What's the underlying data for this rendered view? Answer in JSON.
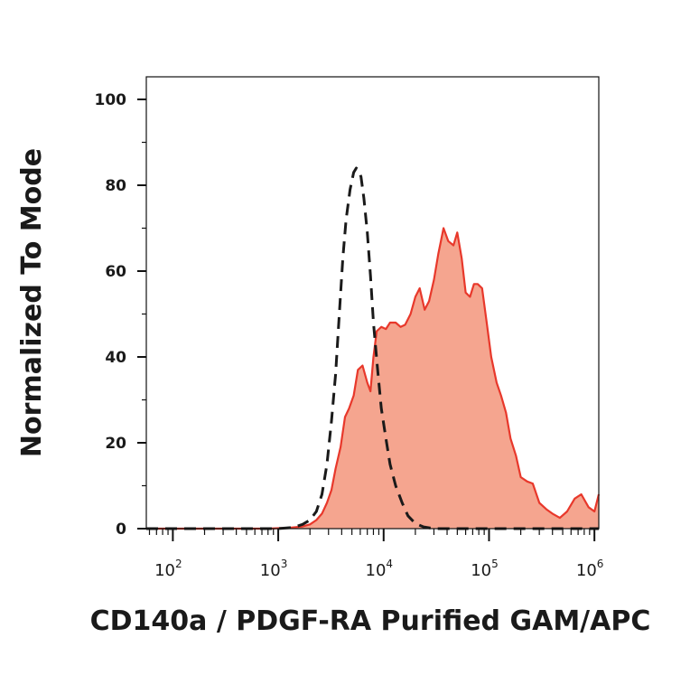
{
  "chart_data": {
    "type": "area",
    "title": "",
    "xlabel": "CD140a / PDGF-RA Purified GAM/APC",
    "ylabel": "Normalized To Mode",
    "xscale": "log",
    "xlim": [
      56,
      1100000
    ],
    "ylim": [
      0,
      100
    ],
    "yticks": [
      "0",
      "20",
      "40",
      "60",
      "80",
      "100"
    ],
    "xticks": [
      {
        "base": "10",
        "exp": "2"
      },
      {
        "base": "10",
        "exp": "3"
      },
      {
        "base": "10",
        "exp": "4"
      },
      {
        "base": "10",
        "exp": "5"
      },
      {
        "base": "10",
        "exp": "6"
      }
    ],
    "grid": false,
    "legend": "none",
    "colors": {
      "sample_fill": "#f5a58f",
      "sample_line": "#e8382b",
      "control_line": "#1a1a1a",
      "axis": "#111111"
    },
    "series": [
      {
        "style": "filled-solid",
        "x": [
          56,
          300,
          800,
          1300,
          1700,
          2000,
          2300,
          2600,
          2900,
          3200,
          3500,
          3900,
          4300,
          4700,
          5200,
          5700,
          6300,
          7000,
          7500,
          8000,
          8600,
          9500,
          10500,
          11500,
          13000,
          14500,
          16000,
          18000,
          20000,
          22000,
          24500,
          27000,
          30000,
          33000,
          37000,
          41000,
          46000,
          50000,
          55000,
          60000,
          66000,
          72000,
          78000,
          86000,
          95000,
          105000,
          118000,
          130000,
          145000,
          160000,
          180000,
          200000,
          230000,
          260000,
          300000,
          350000,
          400000,
          470000,
          550000,
          650000,
          750000,
          880000,
          1000000,
          1100000
        ],
        "y": [
          0,
          0,
          0,
          0.2,
          0.5,
          1,
          2,
          3.5,
          6,
          9,
          14,
          19,
          26,
          28,
          31,
          37,
          38,
          34,
          32,
          40,
          46,
          47,
          46.5,
          48,
          48,
          47,
          47.5,
          50,
          54,
          56,
          51,
          53,
          58,
          64,
          70,
          67,
          66,
          69,
          63,
          55,
          54,
          57,
          57,
          56,
          48,
          40,
          34,
          31,
          27,
          21,
          17,
          12,
          11,
          10.5,
          6,
          4.5,
          3.5,
          2.5,
          4,
          7,
          8,
          5,
          4,
          8
        ]
      },
      {
        "style": "dashed",
        "x": [
          56,
          500,
          1000,
          1400,
          1700,
          2000,
          2300,
          2600,
          2900,
          3200,
          3500,
          3800,
          4100,
          4400,
          4800,
          5200,
          5500,
          5800,
          6100,
          6500,
          7000,
          7500,
          8000,
          8700,
          9500,
          10500,
          11500,
          13000,
          15000,
          17000,
          20000,
          24000,
          30000,
          50000,
          100000,
          500000,
          1100000
        ],
        "y": [
          0,
          0,
          0,
          0.3,
          1,
          2,
          4,
          8,
          15,
          25,
          36,
          50,
          63,
          72,
          79,
          83,
          84,
          83.5,
          82,
          77,
          69,
          59,
          48,
          38,
          28,
          21,
          15,
          10,
          6,
          3,
          1.2,
          0.4,
          0,
          0,
          0,
          0,
          0
        ]
      }
    ]
  }
}
